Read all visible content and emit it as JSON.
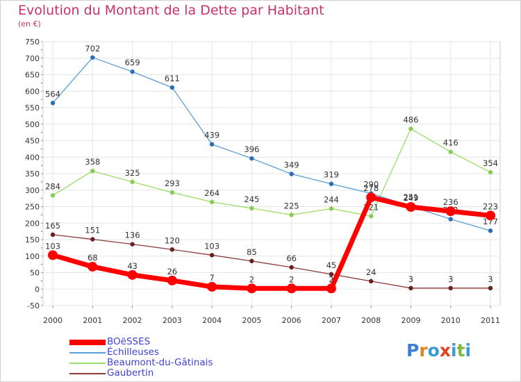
{
  "title": "Evolution du Montant de la Dette par Habitant",
  "unit_label": "(en €)",
  "logo": {
    "letters": [
      "P",
      "r",
      "o",
      "x",
      "i",
      "t",
      "i"
    ],
    "colors": [
      "#3a7fd5",
      "#e0821f",
      "#3a9ad5",
      "#e0401f",
      "#3a9ad5",
      "#7fb83a",
      "#3a9ad5"
    ]
  },
  "chart_data": {
    "type": "line",
    "title": "Evolution du Montant de la Dette par Habitant",
    "ylabel": "(en €)",
    "xlabel": "",
    "x": [
      "2000",
      "2001",
      "2002",
      "2003",
      "2004",
      "2005",
      "2006",
      "2007",
      "2008",
      "2009",
      "2010",
      "2011"
    ],
    "ylim": [
      -50,
      750
    ],
    "yticks": [
      "750",
      "700",
      "650",
      "600",
      "550",
      "500",
      "450",
      "400",
      "350",
      "300",
      "250",
      "200",
      "150",
      "100",
      "50",
      "0",
      "-50"
    ],
    "ytick_values": [
      750,
      700,
      650,
      600,
      550,
      500,
      450,
      400,
      350,
      300,
      250,
      200,
      150,
      100,
      50,
      0,
      -50
    ],
    "grid": true,
    "legend_position": "bottom-left",
    "series": [
      {
        "name": "BOëSSES",
        "color": "#ff0000",
        "marker": "#ff0000",
        "values": [
          103,
          68,
          43,
          26,
          7,
          2,
          2,
          2,
          278,
          249,
          236,
          223
        ],
        "labels": [
          "103",
          "68",
          "43",
          "26",
          "7",
          "2",
          "2",
          "2",
          "278",
          "249",
          "236",
          "223"
        ]
      },
      {
        "name": "Échilleuses",
        "color": "#5a9ed6",
        "marker": "#2a6fb6",
        "values": [
          564,
          702,
          659,
          611,
          439,
          396,
          349,
          319,
          290,
          251,
          212,
          177
        ],
        "labels": [
          "564",
          "702",
          "659",
          "611",
          "439",
          "396",
          "349",
          "319",
          "290",
          "251",
          "212",
          "177"
        ]
      },
      {
        "name": "Beaumont-du-Gâtinais",
        "color": "#99dd66",
        "marker": "#88cc55",
        "values": [
          284,
          358,
          325,
          293,
          264,
          245,
          225,
          244,
          221,
          486,
          416,
          354
        ],
        "labels": [
          "284",
          "358",
          "325",
          "293",
          "264",
          "245",
          "225",
          "244",
          "221",
          "486",
          "416",
          "354"
        ]
      },
      {
        "name": "Gaubertin",
        "color": "#8b3a3a",
        "marker": "#6b2020",
        "values": [
          165,
          151,
          136,
          120,
          103,
          85,
          66,
          45,
          24,
          3,
          3,
          3
        ],
        "labels": [
          "165",
          "151",
          "136",
          "120",
          "103",
          "85",
          "66",
          "45",
          "24",
          "3",
          "3",
          "3"
        ]
      }
    ]
  }
}
